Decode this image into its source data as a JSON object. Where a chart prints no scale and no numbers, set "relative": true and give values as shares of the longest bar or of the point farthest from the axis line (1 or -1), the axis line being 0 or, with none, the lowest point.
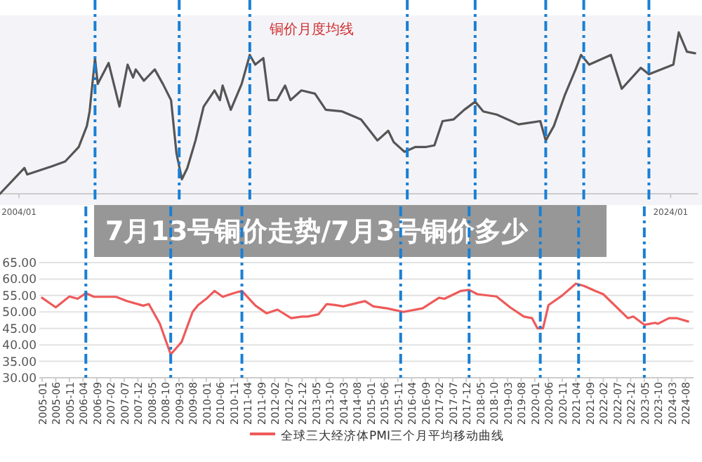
{
  "chart_data": [
    {
      "type": "line",
      "title": "铜价月度均线",
      "relative": true,
      "tick_labels": "x",
      "xlim": [
        "2003-06",
        "2024-11"
      ],
      "xticks": [
        {
          "value": "2004-01",
          "label": "2004/01"
        },
        {
          "value": "2024-01",
          "label": "2024/01"
        }
      ],
      "annotations": [
        "7月13号铜价走势/7月3号铜价多少"
      ],
      "ref_lines": [
        {
          "axis": "x",
          "value": "2006-05",
          "color": "#1a7fd4",
          "line_style": "dashdot"
        },
        {
          "axis": "x",
          "value": "2008-12",
          "color": "#1a7fd4",
          "line_style": "dashdot"
        },
        {
          "axis": "x",
          "value": "2011-02",
          "color": "#1a7fd4",
          "line_style": "dashdot"
        },
        {
          "axis": "x",
          "value": "2015-12",
          "color": "#1a7fd4",
          "line_style": "dashdot"
        },
        {
          "axis": "x",
          "value": "2018-01",
          "color": "#1a7fd4",
          "line_style": "dashdot"
        },
        {
          "axis": "x",
          "value": "2020-03",
          "color": "#1a7fd4",
          "line_style": "dashdot"
        },
        {
          "axis": "x",
          "value": "2021-05",
          "color": "#1a7fd4",
          "line_style": "dashdot"
        },
        {
          "axis": "x",
          "value": "2023-05",
          "color": "#1a7fd4",
          "line_style": "dashdot"
        }
      ],
      "series": [
        {
          "color": "#555555",
          "x": [
            "2003-06",
            "2004-03",
            "2004-04",
            "2005-01",
            "2005-06",
            "2005-11",
            "2006-02",
            "2006-03",
            "2006-05",
            "2006-06",
            "2006-10",
            "2007-02",
            "2007-05",
            "2007-07",
            "2007-08",
            "2007-11",
            "2008-03",
            "2008-06",
            "2008-09",
            "2008-11",
            "2009-01",
            "2009-03",
            "2009-06",
            "2009-09",
            "2010-01",
            "2010-03",
            "2010-04",
            "2010-07",
            "2010-11",
            "2011-02",
            "2011-04",
            "2011-07",
            "2011-09",
            "2011-12",
            "2012-03",
            "2012-05",
            "2012-09",
            "2013-02",
            "2013-06",
            "2013-12",
            "2014-07",
            "2015-01",
            "2015-05",
            "2015-07",
            "2015-11",
            "2016-03",
            "2016-07",
            "2016-10",
            "2017-01",
            "2017-05",
            "2017-09",
            "2018-01",
            "2018-04",
            "2018-09",
            "2019-05",
            "2020-01",
            "2020-03",
            "2020-06",
            "2020-10",
            "2021-02",
            "2021-04",
            "2021-07",
            "2022-03",
            "2022-07",
            "2023-02",
            "2023-05",
            "2024-02",
            "2024-04",
            "2024-07",
            "2024-10"
          ],
          "values": [
            0,
            0.16,
            0.12,
            0.17,
            0.2,
            0.29,
            0.42,
            0.51,
            0.84,
            0.68,
            0.81,
            0.54,
            0.8,
            0.72,
            0.77,
            0.7,
            0.77,
            0.68,
            0.58,
            0.25,
            0.09,
            0.16,
            0.33,
            0.54,
            0.64,
            0.58,
            0.67,
            0.52,
            0.68,
            0.86,
            0.8,
            0.84,
            0.58,
            0.58,
            0.67,
            0.58,
            0.64,
            0.62,
            0.52,
            0.51,
            0.46,
            0.33,
            0.39,
            0.32,
            0.26,
            0.29,
            0.29,
            0.3,
            0.45,
            0.46,
            0.52,
            0.57,
            0.51,
            0.49,
            0.43,
            0.45,
            0.33,
            0.42,
            0.61,
            0.77,
            0.86,
            0.8,
            0.86,
            0.65,
            0.78,
            0.74,
            0.8,
            1,
            0.88,
            0.87
          ]
        }
      ]
    },
    {
      "type": "line",
      "ylim": [
        30,
        65
      ],
      "xlim": [
        "2004-12",
        "2024-11"
      ],
      "grid": "y",
      "legend": "bottom",
      "yticks": [
        {
          "value": 30,
          "label": "30.00"
        },
        {
          "value": 35,
          "label": "35.00"
        },
        {
          "value": 40,
          "label": "40.00"
        },
        {
          "value": 45,
          "label": "45.00"
        },
        {
          "value": 50,
          "label": "50.00"
        },
        {
          "value": 55,
          "label": "55.00"
        },
        {
          "value": 60,
          "label": "60.00"
        },
        {
          "value": 65,
          "label": "65.00"
        }
      ],
      "xticks": [
        {
          "value": "2005-01",
          "label": "2005-01"
        },
        {
          "value": "2005-06",
          "label": "2005-06"
        },
        {
          "value": "2005-11",
          "label": "2005-11"
        },
        {
          "value": "2006-04",
          "label": "2006-04"
        },
        {
          "value": "2006-09",
          "label": "2006-09"
        },
        {
          "value": "2007-02",
          "label": "2007-02"
        },
        {
          "value": "2007-07",
          "label": "2007-07"
        },
        {
          "value": "2007-12",
          "label": "2007-12"
        },
        {
          "value": "2008-05",
          "label": "2008-05"
        },
        {
          "value": "2008-10",
          "label": "2008-10"
        },
        {
          "value": "2009-03",
          "label": "2009-03"
        },
        {
          "value": "2009-08",
          "label": "2009-08"
        },
        {
          "value": "2010-01",
          "label": "2010-01"
        },
        {
          "value": "2010-06",
          "label": "2010-06"
        },
        {
          "value": "2010-11",
          "label": "2010-11"
        },
        {
          "value": "2011-04",
          "label": "2011-04"
        },
        {
          "value": "2011-09",
          "label": "2011-09"
        },
        {
          "value": "2012-02",
          "label": "2012-02"
        },
        {
          "value": "2012-07",
          "label": "2012-07"
        },
        {
          "value": "2012-12",
          "label": "2012-12"
        },
        {
          "value": "2013-05",
          "label": "2013-05"
        },
        {
          "value": "2013-10",
          "label": "2013-10"
        },
        {
          "value": "2014-03",
          "label": "2014-03"
        },
        {
          "value": "2014-08",
          "label": "2014-08"
        },
        {
          "value": "2015-01",
          "label": "2015-01"
        },
        {
          "value": "2015-06",
          "label": "2015-06"
        },
        {
          "value": "2015-11",
          "label": "2015-11"
        },
        {
          "value": "2016-04",
          "label": "2016-04"
        },
        {
          "value": "2016-09",
          "label": "2016-09"
        },
        {
          "value": "2017-02",
          "label": "2017-02"
        },
        {
          "value": "2017-07",
          "label": "2017-07"
        },
        {
          "value": "2017-12",
          "label": "2017-12"
        },
        {
          "value": "2018-05",
          "label": "2018-05"
        },
        {
          "value": "2018-10",
          "label": "2018-10"
        },
        {
          "value": "2019-03",
          "label": "2019-03"
        },
        {
          "value": "2019-08",
          "label": "2019-08"
        },
        {
          "value": "2020-01",
          "label": "2020-01"
        },
        {
          "value": "2020-06",
          "label": "2020-06"
        },
        {
          "value": "2020-11",
          "label": "2020-11"
        },
        {
          "value": "2021-04",
          "label": "2021-04"
        },
        {
          "value": "2021-09",
          "label": "2021-09"
        },
        {
          "value": "2022-02",
          "label": "2022-02"
        },
        {
          "value": "2022-07",
          "label": "2022-07"
        },
        {
          "value": "2022-12",
          "label": "2022-12"
        },
        {
          "value": "2023-05",
          "label": "2023-05"
        },
        {
          "value": "2023-10",
          "label": "2023-10"
        },
        {
          "value": "2024-03",
          "label": "2024-03"
        },
        {
          "value": "2024-08",
          "label": "2024-08"
        }
      ],
      "ref_lines": [
        {
          "axis": "x",
          "value": "2006-05",
          "color": "#1a7fd4",
          "line_style": "dashdot"
        },
        {
          "axis": "x",
          "value": "2008-12",
          "color": "#1a7fd4",
          "line_style": "dashdot"
        },
        {
          "axis": "x",
          "value": "2011-02",
          "color": "#1a7fd4",
          "line_style": "dashdot"
        },
        {
          "axis": "x",
          "value": "2015-12",
          "color": "#1a7fd4",
          "line_style": "dashdot"
        },
        {
          "axis": "x",
          "value": "2018-01",
          "color": "#1a7fd4",
          "line_style": "dashdot"
        },
        {
          "axis": "x",
          "value": "2020-03",
          "color": "#1a7fd4",
          "line_style": "dashdot"
        },
        {
          "axis": "x",
          "value": "2021-05",
          "color": "#1a7fd4",
          "line_style": "dashdot"
        },
        {
          "axis": "x",
          "value": "2023-05",
          "color": "#1a7fd4",
          "line_style": "dashdot"
        }
      ],
      "series": [
        {
          "name": "全球三大经济体PMI三个月平均移动曲线",
          "color": "#ee5a5a",
          "x": [
            "2005-01",
            "2005-06",
            "2005-11",
            "2006-02",
            "2006-05",
            "2006-08",
            "2007-04",
            "2007-08",
            "2008-02",
            "2008-04",
            "2008-08",
            "2008-12",
            "2009-04",
            "2009-08",
            "2009-10",
            "2010-01",
            "2010-04",
            "2010-07",
            "2010-11",
            "2011-02",
            "2011-07",
            "2011-11",
            "2012-03",
            "2012-08",
            "2012-12",
            "2013-02",
            "2013-06",
            "2013-09",
            "2013-12",
            "2014-03",
            "2014-11",
            "2015-02",
            "2015-07",
            "2016-01",
            "2016-08",
            "2017-02",
            "2017-04",
            "2017-10",
            "2018-01",
            "2018-04",
            "2018-11",
            "2019-04",
            "2019-09",
            "2019-12",
            "2020-02",
            "2020-04",
            "2020-06",
            "2020-11",
            "2021-04",
            "2021-07",
            "2021-11",
            "2022-02",
            "2022-11",
            "2023-01",
            "2023-05",
            "2023-09",
            "2023-10",
            "2024-02",
            "2024-05",
            "2024-09"
          ],
          "values": [
            54.3,
            51.4,
            54.7,
            54.0,
            55.7,
            54.6,
            54.6,
            53.3,
            51.9,
            52.4,
            46.5,
            37.1,
            40.9,
            50,
            52.1,
            54,
            56.4,
            54.6,
            55.7,
            56.4,
            51.9,
            49.6,
            50.7,
            48.1,
            48.6,
            48.6,
            49.3,
            52.4,
            52.1,
            51.7,
            53.3,
            51.7,
            51.1,
            50.0,
            51.1,
            54.3,
            54,
            56.4,
            56.7,
            55.4,
            54.7,
            51.4,
            48.6,
            48.1,
            45,
            45,
            52.1,
            55,
            58.6,
            57.9,
            56.4,
            55.4,
            48.1,
            48.6,
            46.1,
            46.7,
            46.4,
            48.1,
            48.1,
            47.1
          ]
        }
      ]
    }
  ]
}
